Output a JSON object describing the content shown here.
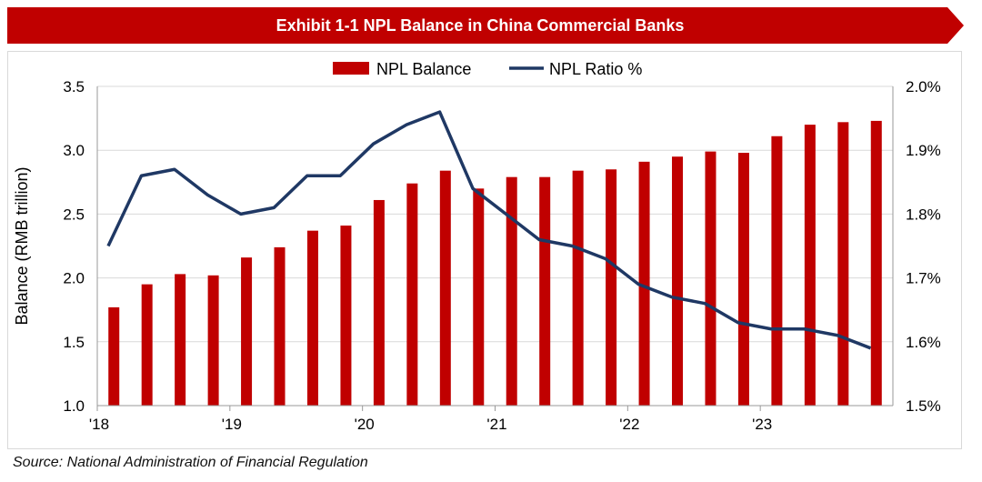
{
  "banner": {
    "title": "Exhibit 1-1 NPL Balance in China Commercial Banks"
  },
  "source": "Source: National Administration of Financial Regulation",
  "colors": {
    "bar": "#c00000",
    "line": "#1f3864",
    "banner": "#c00000",
    "grid": "#d9d9d9"
  },
  "chart_data": {
    "type": "bar+line",
    "title": "Exhibit 1-1 NPL Balance in China Commercial Banks",
    "ylabel": "Balance (RMB trillion)",
    "y2label": "",
    "ylim": [
      1.0,
      3.5
    ],
    "y_ticks": [
      "1.0",
      "1.5",
      "2.0",
      "2.5",
      "3.0",
      "3.5"
    ],
    "y2lim": [
      1.5,
      2.0
    ],
    "y2_ticks": [
      "1.5%",
      "1.6%",
      "1.7%",
      "1.8%",
      "1.9%",
      "2.0%"
    ],
    "x_labels": [
      "'18",
      "'19",
      "'20",
      "'21",
      "'22",
      "'23"
    ],
    "categories": [
      "2018Q1",
      "2018Q2",
      "2018Q3",
      "2018Q4",
      "2019Q1",
      "2019Q2",
      "2019Q3",
      "2019Q4",
      "2020Q1",
      "2020Q2",
      "2020Q3",
      "2020Q4",
      "2021Q1",
      "2021Q2",
      "2021Q3",
      "2021Q4",
      "2022Q1",
      "2022Q2",
      "2022Q3",
      "2022Q4",
      "2023Q1",
      "2023Q2",
      "2023Q3",
      "2023Q4"
    ],
    "legend": [
      "NPL Balance",
      "NPL Ratio %"
    ],
    "grid": true,
    "series": [
      {
        "name": "NPL Balance",
        "axis": "left",
        "kind": "bar",
        "values": [
          1.77,
          1.95,
          2.03,
          2.02,
          2.16,
          2.24,
          2.37,
          2.41,
          2.61,
          2.74,
          2.84,
          2.7,
          2.79,
          2.79,
          2.84,
          2.85,
          2.91,
          2.95,
          2.99,
          2.98,
          3.11,
          3.2,
          3.22,
          3.23
        ]
      },
      {
        "name": "NPL Ratio %",
        "axis": "right",
        "kind": "line",
        "values": [
          1.75,
          1.86,
          1.87,
          1.83,
          1.8,
          1.81,
          1.86,
          1.86,
          1.91,
          1.94,
          1.96,
          1.84,
          1.8,
          1.76,
          1.75,
          1.73,
          1.69,
          1.67,
          1.66,
          1.63,
          1.62,
          1.62,
          1.61,
          1.59
        ]
      }
    ]
  }
}
